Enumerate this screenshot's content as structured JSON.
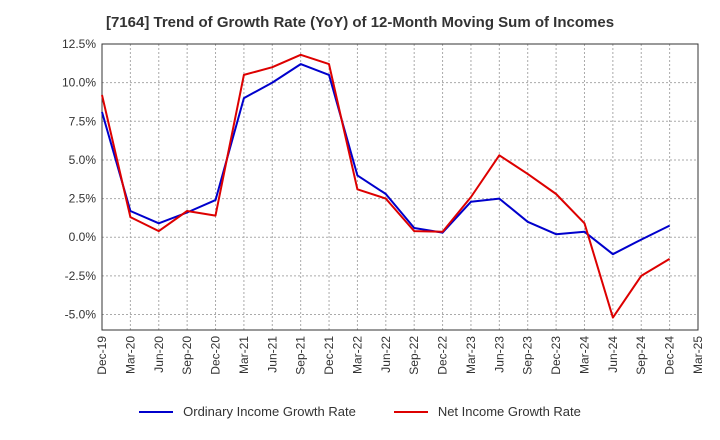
{
  "chart_data": {
    "type": "line",
    "title": "[7164]  Trend of Growth Rate (YoY) of 12-Month Moving Sum of Incomes",
    "xlabel": "",
    "ylabel": "",
    "categories": [
      "Dec-19",
      "Mar-20",
      "Jun-20",
      "Sep-20",
      "Dec-20",
      "Mar-21",
      "Jun-21",
      "Sep-21",
      "Dec-21",
      "Mar-22",
      "Jun-22",
      "Sep-22",
      "Dec-22",
      "Mar-23",
      "Jun-23",
      "Sep-23",
      "Dec-23",
      "Mar-24",
      "Jun-24",
      "Sep-24",
      "Dec-24",
      "Mar-25"
    ],
    "y_tick_labels": [
      "12.5%",
      "10.0%",
      "7.5%",
      "5.0%",
      "2.5%",
      "0.0%",
      "-2.5%",
      "-5.0%"
    ],
    "y_tick_values": [
      12.5,
      10.0,
      7.5,
      5.0,
      2.5,
      0.0,
      -2.5,
      -5.0
    ],
    "ylim": [
      -6.0,
      12.5
    ],
    "grid": true,
    "legend_position": "bottom",
    "series": [
      {
        "name": "Ordinary Income Growth Rate",
        "color": "#0000cc",
        "values": [
          8.1,
          1.7,
          0.9,
          1.6,
          2.4,
          9.0,
          10.0,
          11.2,
          10.5,
          4.0,
          2.8,
          0.6,
          0.3,
          2.3,
          2.5,
          1.0,
          0.2,
          0.35,
          -1.1,
          -0.15,
          0.75,
          null
        ]
      },
      {
        "name": "Net Income Growth Rate",
        "color": "#dd0000",
        "values": [
          9.2,
          1.3,
          0.4,
          1.7,
          1.4,
          10.5,
          11.0,
          11.8,
          11.2,
          3.1,
          2.5,
          0.4,
          0.35,
          2.6,
          5.3,
          4.1,
          2.8,
          0.9,
          -5.2,
          -2.5,
          -1.4,
          null
        ]
      }
    ]
  },
  "legend": {
    "items": [
      {
        "label": "Ordinary Income Growth Rate",
        "color": "#0000cc"
      },
      {
        "label": "Net Income Growth Rate",
        "color": "#dd0000"
      }
    ]
  }
}
